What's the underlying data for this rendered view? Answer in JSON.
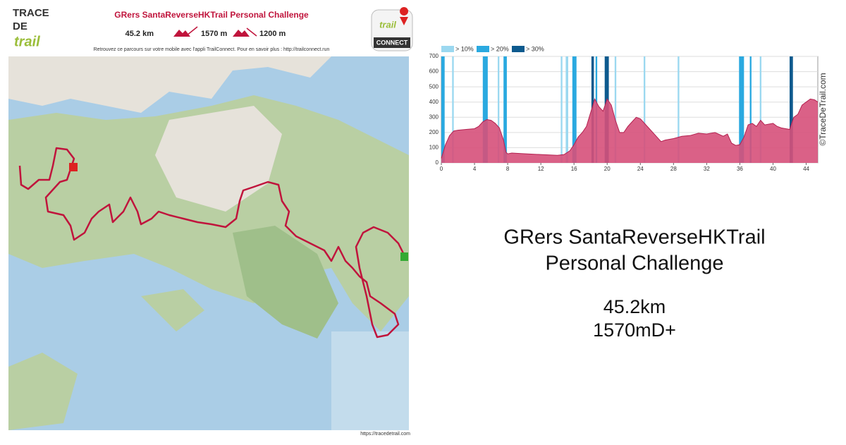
{
  "header": {
    "logo": [
      "TRACE",
      "DE",
      "trail"
    ],
    "title": "GRers SantaReverseHKTrail Personal Challenge",
    "stats": [
      "45.2 km",
      "1570 m",
      "1200 m"
    ],
    "note": "Retrouvez ce parcours sur votre mobile avec l'appli TrailConnect. Pour en savoir plus : http://trailconnect.run",
    "app": [
      "trail",
      "CONNECT"
    ]
  },
  "map": {
    "credit": "https://tracedetrail.com"
  },
  "chart_data": {
    "type": "area",
    "color": "#d6507a",
    "line_color": "#b3204f",
    "x": [
      0,
      0.5,
      1,
      1.5,
      2,
      3,
      4,
      4.5,
      5,
      5.5,
      6,
      6.5,
      7,
      7.5,
      7.8,
      8,
      8.5,
      10,
      12,
      14,
      14.8,
      15.5,
      16,
      16.5,
      17,
      17.5,
      18,
      18.5,
      19,
      19.5,
      20,
      20.5,
      21,
      21.5,
      22,
      22.5,
      23,
      23.5,
      24,
      25,
      26,
      26.5,
      27,
      28,
      29,
      30,
      31,
      32,
      33,
      34,
      34.5,
      35,
      35.5,
      36,
      36.5,
      37,
      37.5,
      38,
      38.5,
      39,
      40,
      40.5,
      41,
      42,
      42.5,
      43,
      43.5,
      44,
      44.5,
      45,
      45.4
    ],
    "values": [
      30,
      120,
      180,
      210,
      215,
      220,
      225,
      240,
      270,
      285,
      280,
      260,
      230,
      150,
      70,
      60,
      65,
      60,
      55,
      50,
      55,
      80,
      120,
      170,
      200,
      240,
      330,
      420,
      370,
      340,
      420,
      380,
      280,
      200,
      200,
      240,
      270,
      300,
      290,
      230,
      170,
      140,
      150,
      160,
      175,
      180,
      195,
      190,
      200,
      175,
      190,
      130,
      115,
      120,
      170,
      250,
      260,
      240,
      280,
      250,
      260,
      240,
      230,
      220,
      300,
      320,
      380,
      400,
      420,
      415,
      400
    ],
    "xlim": [
      0,
      45.4
    ],
    "ylim": [
      0,
      700
    ],
    "xticks": [
      0,
      4,
      8,
      12,
      16,
      20,
      24,
      28,
      32,
      36,
      40,
      44
    ],
    "yticks": [
      0,
      100,
      200,
      300,
      400,
      500,
      600,
      700
    ],
    "grid": true,
    "slope_legend": [
      {
        "label": "> 10%",
        "color": "#9bd8f0"
      },
      {
        "label": "> 20%",
        "color": "#2aa9e0"
      },
      {
        "label": "> 30%",
        "color": "#0d5a8e"
      }
    ],
    "slope_segments": [
      {
        "x": [
          0,
          0.4
        ],
        "level": 1
      },
      {
        "x": [
          1.3,
          1.5
        ],
        "level": 0
      },
      {
        "x": [
          5,
          5.6
        ],
        "level": 1
      },
      {
        "x": [
          6.8,
          7
        ],
        "level": 0
      },
      {
        "x": [
          7.5,
          7.9
        ],
        "level": 1
      },
      {
        "x": [
          14.4,
          14.6
        ],
        "level": 0
      },
      {
        "x": [
          15,
          15.3
        ],
        "level": 0
      },
      {
        "x": [
          15.8,
          16.3
        ],
        "level": 1
      },
      {
        "x": [
          18.1,
          18.4
        ],
        "level": 2
      },
      {
        "x": [
          18.6,
          18.8
        ],
        "level": 1
      },
      {
        "x": [
          19.7,
          20.2
        ],
        "level": 2
      },
      {
        "x": [
          20.9,
          21.1
        ],
        "level": 0
      },
      {
        "x": [
          24.4,
          24.6
        ],
        "level": 0
      },
      {
        "x": [
          28.5,
          28.7
        ],
        "level": 0
      },
      {
        "x": [
          35.9,
          36.5
        ],
        "level": 1
      },
      {
        "x": [
          37.2,
          37.4
        ],
        "level": 1
      },
      {
        "x": [
          38.4,
          38.6
        ],
        "level": 0
      },
      {
        "x": [
          42,
          42.4
        ],
        "level": 2
      }
    ],
    "copyright": "©TraceDeTrail.com"
  },
  "summary": {
    "title_lines": [
      "GRers SantaReverseHKTrail",
      "Personal Challenge"
    ],
    "distance": "45.2km",
    "elevation": "1570mD+"
  }
}
